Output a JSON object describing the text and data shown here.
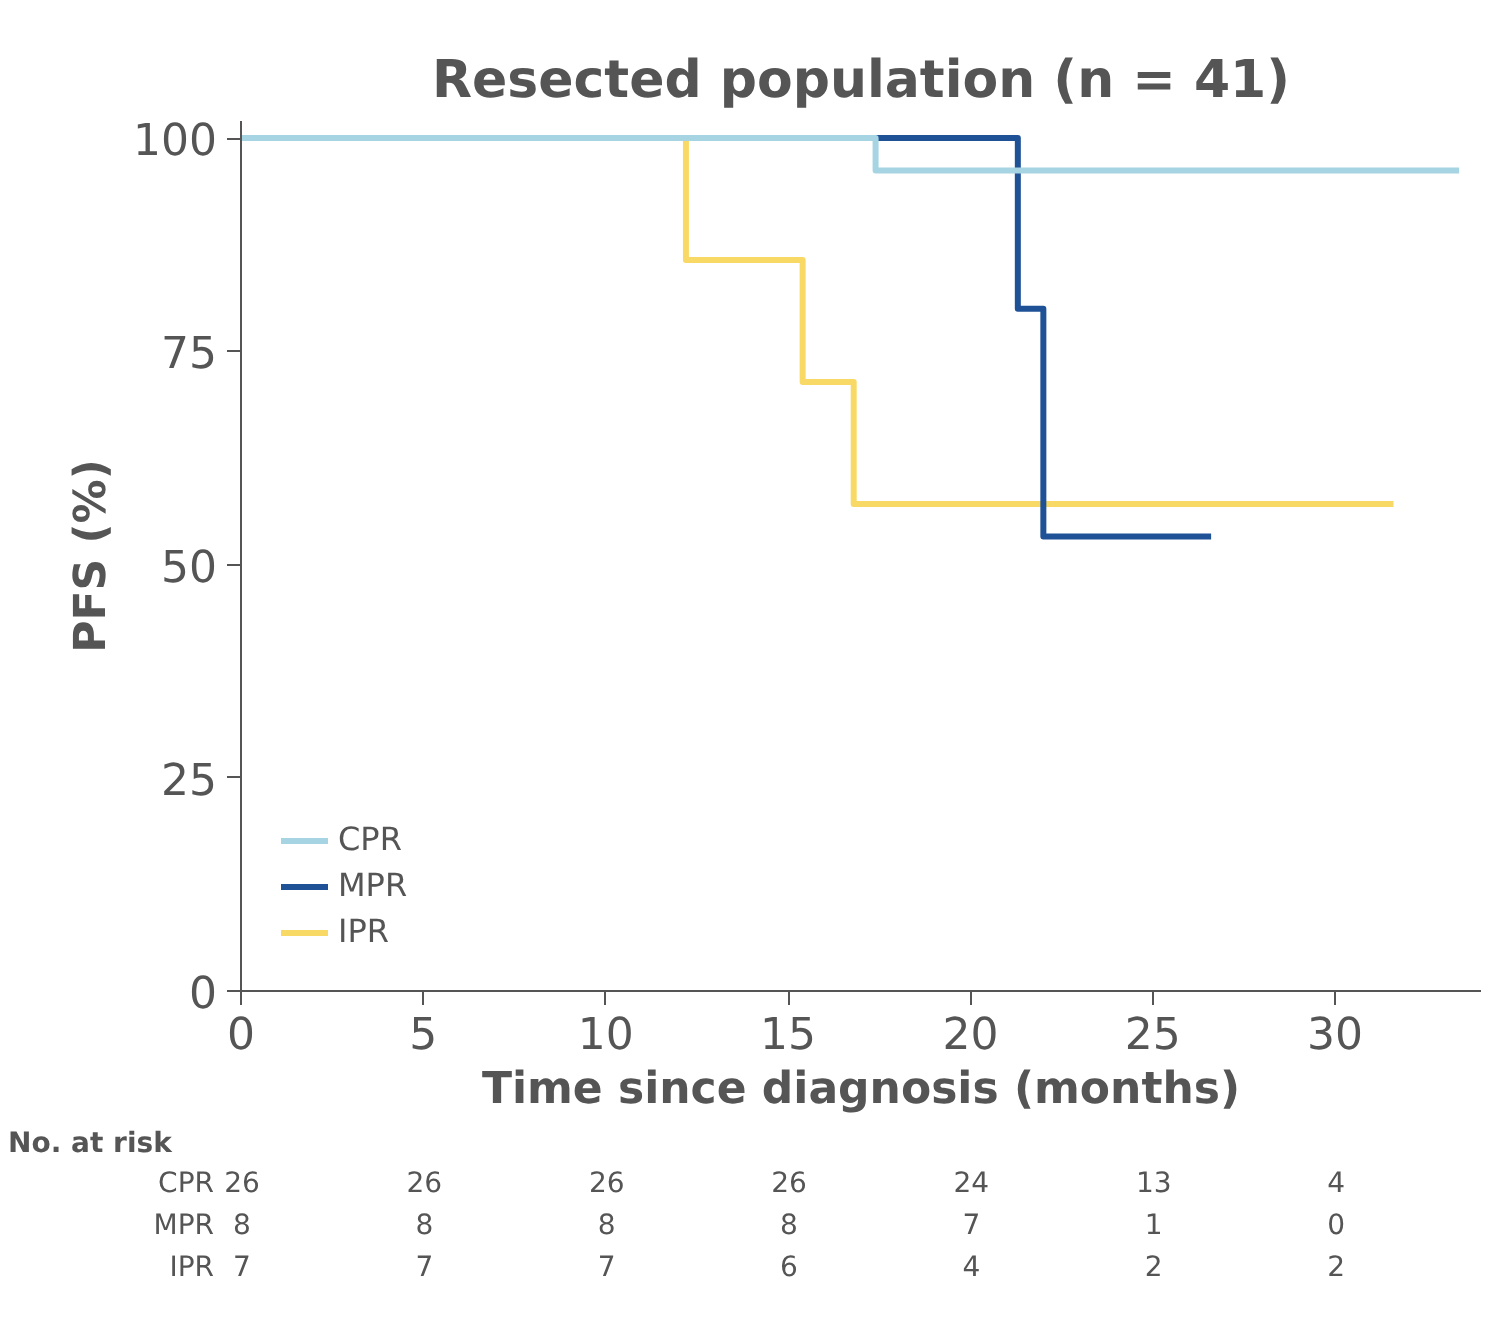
{
  "chart_data": {
    "type": "step",
    "title": "Resected population (n = 41)",
    "xlabel": "Time since diagnosis (months)",
    "ylabel": "PFS (%)",
    "xlim": [
      0,
      34
    ],
    "ylim": [
      0,
      102
    ],
    "xticks": [
      0,
      5,
      10,
      15,
      20,
      25,
      30
    ],
    "yticks": [
      0,
      25,
      50,
      75,
      100
    ],
    "grid": false,
    "legend": "bottom left",
    "marker": "none",
    "line_style": "solid",
    "series": [
      {
        "name": "CPR",
        "color": "#a6d4e2",
        "x": [
          0,
          17.4,
          17.4,
          19.2,
          19.9,
          20.4,
          20.8,
          21.5,
          22.2,
          22.9,
          23.8,
          25.5,
          26.3,
          26.9,
          27.4,
          28.1,
          28.7,
          30.7,
          32.2,
          32.7,
          33.4
        ],
        "values": [
          100,
          100,
          96.2,
          96.2,
          96.2,
          96.2,
          96.2,
          96.2,
          96.2,
          96.2,
          96.2,
          96.2,
          96.2,
          96.2,
          96.2,
          96.2,
          96.2,
          96.2,
          96.2,
          96.2,
          96.2
        ]
      },
      {
        "name": "MPR",
        "color": "#1f5196",
        "x": [
          0,
          18.8,
          20.6,
          21.1,
          21.3,
          22.0,
          23.6,
          26.6
        ],
        "values": [
          100,
          100,
          100,
          100,
          80,
          53.3,
          53.3,
          53.3
        ]
      },
      {
        "name": "IPR",
        "color": "#f9d965",
        "x": [
          0,
          12.2,
          15.4,
          16.8,
          30.6,
          31.6
        ],
        "values": [
          100,
          85.7,
          71.4,
          57.1,
          57.1,
          57.1
        ]
      }
    ],
    "annotations": [
      "No. at risk",
      "CPR",
      "26",
      "26",
      "26",
      "26",
      "24",
      "13",
      "4",
      "MPR",
      "8",
      "8",
      "8",
      "8",
      "7",
      "1",
      "0",
      "IPR",
      "7",
      "7",
      "7",
      "6",
      "4",
      "2",
      "2"
    ]
  }
}
